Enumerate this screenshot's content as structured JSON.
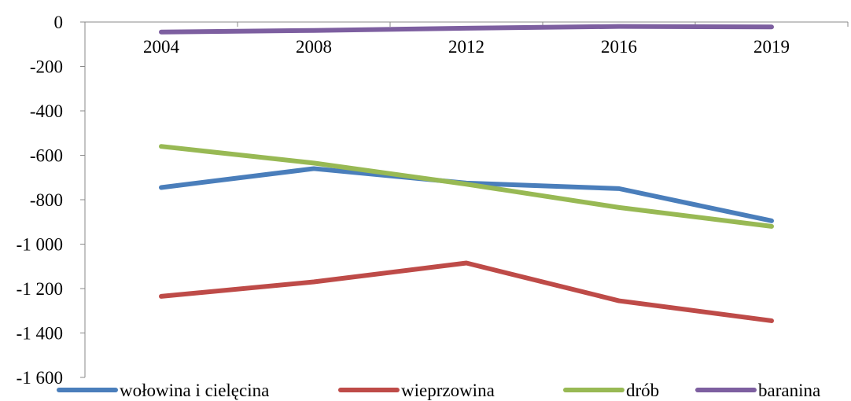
{
  "chart_data": {
    "type": "line",
    "title": "",
    "xlabel": "",
    "ylabel": "",
    "categories": [
      "2004",
      "2008",
      "2012",
      "2016",
      "2019"
    ],
    "ylim": [
      -1600,
      0
    ],
    "y_ticks": [
      0,
      -200,
      -400,
      -600,
      -800,
      -1000,
      -1200,
      -1400,
      -1600
    ],
    "y_tick_labels": [
      "0",
      "-200",
      "-400",
      "-600",
      "-800",
      "-1 000",
      "-1 200",
      "-1 400",
      "-1 600"
    ],
    "grid": false,
    "legend_position": "bottom",
    "series": [
      {
        "name": "wołowina i cielęcina",
        "color": "#4a7ebb",
        "values": [
          -745,
          -660,
          -725,
          -750,
          -895
        ]
      },
      {
        "name": "wieprzowina",
        "color": "#be4b48",
        "values": [
          -1235,
          -1170,
          -1085,
          -1255,
          -1345
        ]
      },
      {
        "name": "drób",
        "color": "#98b954",
        "values": [
          -560,
          -635,
          -730,
          -835,
          -920
        ]
      },
      {
        "name": "baranina",
        "color": "#7d5fa0",
        "values": [
          -45,
          -38,
          -28,
          -20,
          -22
        ]
      }
    ]
  }
}
